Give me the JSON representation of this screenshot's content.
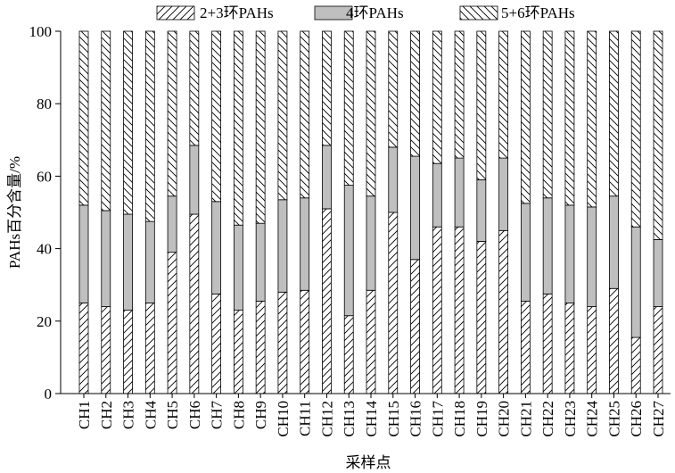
{
  "chart_data": {
    "type": "bar",
    "stacked": true,
    "categories": [
      "CH1",
      "CH2",
      "CH3",
      "CH4",
      "CH5",
      "CH6",
      "CH7",
      "CH8",
      "CH9",
      "CH10",
      "CH11",
      "CH12",
      "CH13",
      "CH14",
      "CH15",
      "CH16",
      "CH17",
      "CH18",
      "CH19",
      "CH20",
      "CH21",
      "CH22",
      "CH23",
      "CH24",
      "CH25",
      "CH26",
      "CH27"
    ],
    "series": [
      {
        "name": "2+3环PAHs",
        "pattern": "forward-hatch",
        "values": [
          25,
          24,
          23,
          25,
          39,
          49.5,
          27.5,
          23,
          25.5,
          28,
          28.5,
          51,
          21.5,
          28.5,
          50,
          37,
          46,
          46,
          42,
          45,
          25.5,
          27.5,
          25,
          24,
          29,
          15.5,
          24
        ]
      },
      {
        "name": "4环PAHs",
        "pattern": "solid-gray",
        "color": "#bfbfbf",
        "values": [
          27,
          26.5,
          26.5,
          22.5,
          15.5,
          19,
          25.5,
          23.5,
          21.5,
          25.5,
          25.5,
          17.5,
          36,
          26,
          18,
          28.5,
          17.5,
          19,
          17,
          20,
          27,
          26.5,
          27,
          27.5,
          25.5,
          30.5,
          18.5
        ]
      },
      {
        "name": "5+6环PAHs",
        "pattern": "back-hatch",
        "values": [
          48,
          49.5,
          50.5,
          52.5,
          45.5,
          31.5,
          47,
          53.5,
          53,
          46.5,
          46,
          31.5,
          42.5,
          45.5,
          32,
          34.5,
          36.5,
          35,
          41,
          35,
          47.5,
          46,
          48,
          48.5,
          45.5,
          54,
          57.5
        ]
      }
    ],
    "xlabel": "采样点",
    "ylabel": "PAHs百分含量/%",
    "ylim": [
      0,
      100
    ],
    "yticks": [
      0,
      20,
      40,
      60,
      80,
      100
    ],
    "legend_position": "top",
    "grid": false
  }
}
